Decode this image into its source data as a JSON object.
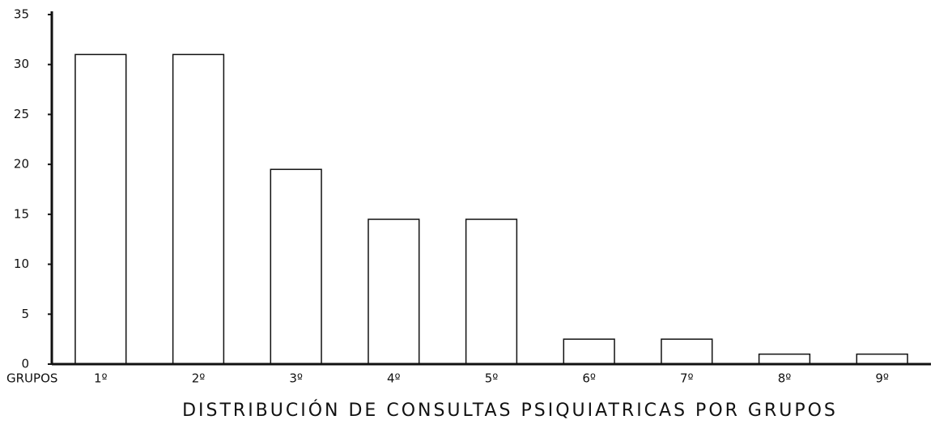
{
  "chart_data": {
    "type": "bar",
    "title": "DISTRIBUCIÓN DE CONSULTAS PSIQUIATRICAS POR GRUPOS",
    "x_label": "GRUPOS",
    "categories": [
      "1º",
      "2º",
      "3º",
      "4º",
      "5º",
      "6º",
      "7º",
      "8º",
      "9º"
    ],
    "values": [
      31,
      31,
      19.5,
      14.5,
      14.5,
      2.5,
      2.5,
      1,
      1
    ],
    "color": "#ffffff",
    "ylim": [
      0,
      35
    ],
    "yticks": [
      0,
      5,
      10,
      15,
      20,
      25,
      30,
      35
    ],
    "grid": false
  }
}
